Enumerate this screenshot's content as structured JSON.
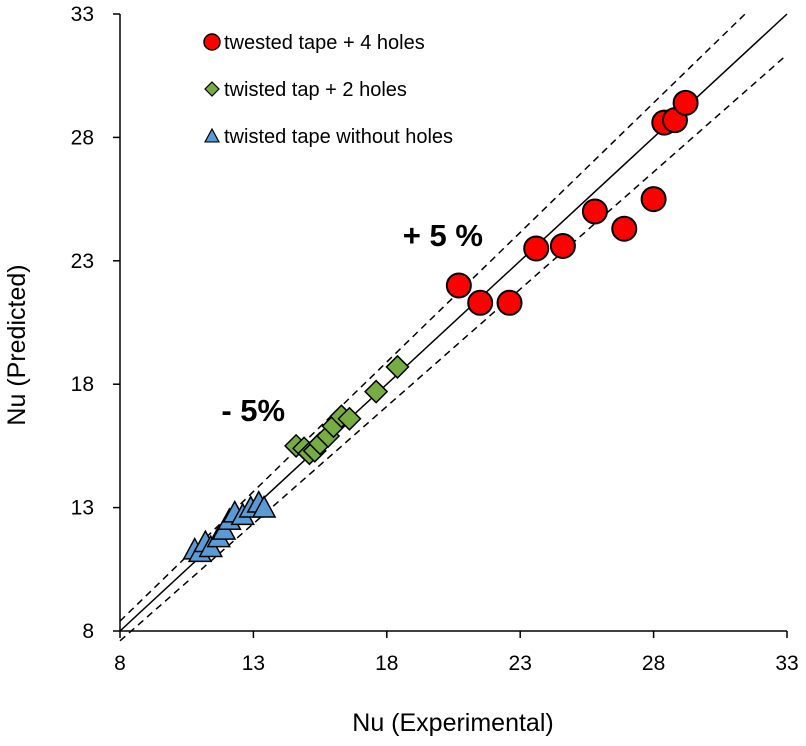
{
  "chart_data": {
    "type": "scatter",
    "title": "",
    "xlabel": "Nu (Experimental)",
    "ylabel": "Nu (Predicted)",
    "xlim": [
      8,
      33
    ],
    "ylim": [
      8,
      33
    ],
    "xticks": [
      "8",
      "13",
      "18",
      "23",
      "28",
      "33"
    ],
    "yticks": [
      "8",
      "13",
      "18",
      "23",
      "28",
      "33"
    ],
    "grid": false,
    "legend_position": "top-left",
    "reference_lines": [
      {
        "name": "parity",
        "style": "solid",
        "slope": 1.0
      },
      {
        "name": "upper bound",
        "style": "dashed",
        "slope": 1.05
      },
      {
        "name": "lower bound",
        "style": "dashed",
        "slope": 0.95
      }
    ],
    "annotations": [
      {
        "text": "+ 5 %",
        "x": 18.6,
        "y": 23.6
      },
      {
        "text": "- 5%",
        "x": 11.8,
        "y": 16.5
      }
    ],
    "series": [
      {
        "name": "twested tape + 4 holes",
        "marker": "circle",
        "color": "#ff0000",
        "x": [
          20.7,
          21.5,
          22.6,
          23.6,
          24.6,
          25.8,
          26.9,
          28.0,
          28.4,
          28.8,
          29.2
        ],
        "y": [
          22.0,
          21.3,
          21.3,
          23.5,
          23.6,
          25.0,
          24.3,
          25.5,
          28.6,
          28.7,
          29.4
        ]
      },
      {
        "name": "twisted tap + 2 holes",
        "marker": "diamond",
        "color": "#77ac43",
        "x": [
          14.6,
          14.9,
          15.1,
          15.3,
          15.5,
          15.8,
          16.0,
          16.3,
          16.6,
          17.6,
          18.4
        ],
        "y": [
          15.5,
          15.4,
          15.2,
          15.3,
          15.6,
          15.9,
          16.3,
          16.7,
          16.6,
          17.7,
          18.7
        ]
      },
      {
        "name": "twisted tape without holes",
        "marker": "triangle",
        "color": "#5b9bd5",
        "x": [
          10.8,
          11.0,
          11.2,
          11.4,
          11.7,
          11.9,
          12.1,
          12.3,
          12.6,
          12.9,
          13.2,
          13.4
        ],
        "y": [
          11.3,
          11.2,
          11.6,
          11.4,
          11.8,
          12.1,
          12.5,
          12.8,
          12.7,
          13.0,
          13.2,
          13.0
        ]
      }
    ]
  }
}
